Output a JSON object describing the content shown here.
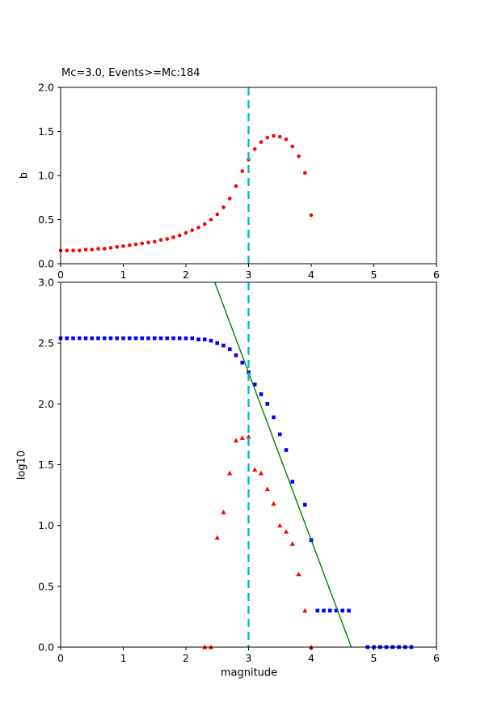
{
  "chart_data": [
    {
      "name": "b-value-vs-magnitude-subplot",
      "type": "scatter",
      "title": "Mc=3.0, Events>=Mc:184",
      "xlabel": "",
      "ylabel": "b",
      "xlim": [
        0,
        6
      ],
      "ylim": [
        0.0,
        2.0
      ],
      "xticks": [
        0,
        1,
        2,
        3,
        4,
        5,
        6
      ],
      "xtick_labels": [
        "0",
        "1",
        "2",
        "3",
        "4",
        "5",
        "6"
      ],
      "yticks": [
        0.0,
        0.5,
        1.0,
        1.5,
        2.0
      ],
      "ytick_labels": [
        "0.0",
        "0.5",
        "1.0",
        "1.5",
        "2.0"
      ],
      "grid": false,
      "legend": "none",
      "series": [
        {
          "name": "b-value-estimates",
          "kind": "scatter",
          "marker": "circle",
          "color": "#ff0000",
          "x": [
            0.0,
            0.1,
            0.2,
            0.3,
            0.4,
            0.5,
            0.6,
            0.7,
            0.8,
            0.9,
            1.0,
            1.1,
            1.2,
            1.3,
            1.4,
            1.5,
            1.6,
            1.7,
            1.8,
            1.9,
            2.0,
            2.1,
            2.2,
            2.3,
            2.4,
            2.5,
            2.6,
            2.7,
            2.8,
            2.9,
            3.0,
            3.1,
            3.2,
            3.3,
            3.4,
            3.5,
            3.6,
            3.7,
            3.8,
            3.9,
            4.0
          ],
          "y": [
            0.15,
            0.15,
            0.15,
            0.15,
            0.16,
            0.16,
            0.17,
            0.17,
            0.18,
            0.19,
            0.2,
            0.21,
            0.22,
            0.23,
            0.24,
            0.25,
            0.27,
            0.28,
            0.3,
            0.32,
            0.35,
            0.38,
            0.41,
            0.45,
            0.5,
            0.56,
            0.64,
            0.74,
            0.88,
            1.05,
            1.18,
            1.3,
            1.38,
            1.43,
            1.45,
            1.44,
            1.41,
            1.33,
            1.22,
            1.03,
            0.55
          ]
        },
        {
          "name": "mc-vertical-line",
          "kind": "vline",
          "x": 3.0,
          "color": "#00bfbf",
          "dash": "dashed"
        }
      ]
    },
    {
      "name": "frequency-magnitude-subplot",
      "type": "scatter",
      "title": "",
      "xlabel": "magnitude",
      "ylabel": "log10",
      "xlim": [
        0,
        6
      ],
      "ylim": [
        0.0,
        3.0
      ],
      "xticks": [
        0,
        1,
        2,
        3,
        4,
        5,
        6
      ],
      "xtick_labels": [
        "0",
        "1",
        "2",
        "3",
        "4",
        "5",
        "6"
      ],
      "yticks": [
        0.0,
        0.5,
        1.0,
        1.5,
        2.0,
        2.5,
        3.0
      ],
      "ytick_labels": [
        "0.0",
        "0.5",
        "1.0",
        "1.5",
        "2.0",
        "2.5",
        "3.0"
      ],
      "grid": false,
      "legend": "none",
      "series": [
        {
          "name": "cumulative-event-counts",
          "kind": "scatter",
          "marker": "square",
          "color": "#0000ff",
          "x": [
            0.0,
            0.1,
            0.2,
            0.3,
            0.4,
            0.5,
            0.6,
            0.7,
            0.8,
            0.9,
            1.0,
            1.1,
            1.2,
            1.3,
            1.4,
            1.5,
            1.6,
            1.7,
            1.8,
            1.9,
            2.0,
            2.1,
            2.2,
            2.3,
            2.4,
            2.5,
            2.6,
            2.7,
            2.8,
            2.9,
            3.0,
            3.1,
            3.2,
            3.3,
            3.4,
            3.5,
            3.6,
            3.7,
            3.9,
            4.0,
            4.1,
            4.2,
            4.3,
            4.4,
            4.5,
            4.6,
            4.9,
            5.0,
            5.1,
            5.2,
            5.3,
            5.4,
            5.5,
            5.6
          ],
          "y": [
            2.54,
            2.54,
            2.54,
            2.54,
            2.54,
            2.54,
            2.54,
            2.54,
            2.54,
            2.54,
            2.54,
            2.54,
            2.54,
            2.54,
            2.54,
            2.54,
            2.54,
            2.54,
            2.54,
            2.54,
            2.54,
            2.54,
            2.53,
            2.53,
            2.52,
            2.5,
            2.48,
            2.45,
            2.4,
            2.34,
            2.26,
            2.16,
            2.08,
            2.0,
            1.89,
            1.75,
            1.62,
            1.36,
            1.17,
            0.88,
            0.3,
            0.3,
            0.3,
            0.3,
            0.3,
            0.3,
            0.0,
            0.0,
            0.0,
            0.0,
            0.0,
            0.0,
            0.0,
            0.0
          ]
        },
        {
          "name": "incremental-event-counts",
          "kind": "scatter",
          "marker": "triangle-up",
          "color": "#ff0000",
          "x": [
            2.3,
            2.4,
            2.5,
            2.6,
            2.7,
            2.8,
            2.9,
            3.0,
            3.1,
            3.2,
            3.3,
            3.4,
            3.5,
            3.6,
            3.7,
            3.8,
            3.9,
            4.0
          ],
          "y": [
            0.0,
            0.0,
            0.9,
            1.11,
            1.43,
            1.7,
            1.72,
            1.73,
            1.46,
            1.43,
            1.3,
            1.18,
            1.0,
            0.95,
            0.85,
            0.6,
            0.3,
            0.0
          ]
        },
        {
          "name": "gutenberg-richter-fit-line",
          "kind": "line",
          "color": "#008000",
          "x": [
            2.46,
            4.64
          ],
          "y": [
            3.0,
            0.0
          ]
        },
        {
          "name": "mc-vertical-line",
          "kind": "vline",
          "x": 3.0,
          "color": "#00bfbf",
          "dash": "dashed"
        }
      ]
    }
  ],
  "colors": {
    "b_value_points": "#ff0000",
    "cumulative_points": "#0000ff",
    "incremental_points": "#ff0000",
    "fit_line": "#008000",
    "mc_line": "#00bfbf",
    "axes": "#000000",
    "background": "#ffffff"
  }
}
